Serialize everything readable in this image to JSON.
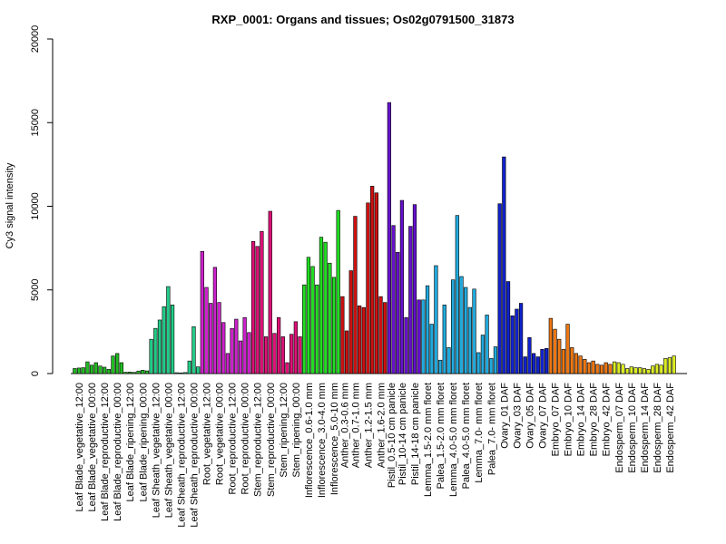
{
  "chart_data": {
    "type": "bar",
    "title": "RXP_0001: Organs and tissues; Os02g0791500_31873",
    "xlabel": "",
    "ylabel": "Cy3 signal intensity",
    "ylim": [
      0,
      20000
    ],
    "yticks": [
      0,
      5000,
      10000,
      15000,
      20000
    ],
    "grid": false,
    "legend": "none",
    "groups": [
      {
        "name": "Leaf Blade_vegetative_12:00",
        "color": "#22bb22",
        "values": [
          300,
          330,
          350
        ]
      },
      {
        "name": "Leaf Blade_vegetative_00:00",
        "color": "#22bb22",
        "values": [
          700,
          500,
          650
        ]
      },
      {
        "name": "Leaf Blade_reproductive_12:00",
        "color": "#22bb22",
        "values": [
          450,
          380,
          250
        ]
      },
      {
        "name": "Leaf Blade_reproductive_00:00",
        "color": "#22bb22",
        "values": [
          1050,
          1200,
          650
        ]
      },
      {
        "name": "Leaf Blade_ripening_12:00",
        "color": "#22bb22",
        "values": [
          80,
          90,
          70
        ]
      },
      {
        "name": "Leaf Blade_ripening_00:00",
        "color": "#22bb22",
        "values": [
          150,
          200,
          160
        ]
      },
      {
        "name": "Leaf Sheath_vegetative_12:00",
        "color": "#22cc88",
        "values": [
          2050,
          2700,
          3200
        ]
      },
      {
        "name": "Leaf Sheath_vegetative_00:00",
        "color": "#22cc88",
        "values": [
          4000,
          5200,
          4100
        ]
      },
      {
        "name": "Leaf Sheath_reproductive_12:00",
        "color": "#22cc88",
        "values": [
          50,
          40,
          60
        ]
      },
      {
        "name": "Leaf Sheath_reproductive_00:00",
        "color": "#22cc88",
        "values": [
          750,
          2800,
          400
        ]
      },
      {
        "name": "Root_vegetative_12:00",
        "color": "#cc22cc",
        "values": [
          7300,
          5150,
          4200
        ]
      },
      {
        "name": "Root_vegetative_00:00",
        "color": "#cc22cc",
        "values": [
          6350,
          4250,
          3050
        ]
      },
      {
        "name": "Root_reproductive_12:00",
        "color": "#cc22cc",
        "values": [
          1200,
          2700,
          3250
        ]
      },
      {
        "name": "Root_reproductive_00:00",
        "color": "#cc22cc",
        "values": [
          1950,
          3350,
          2450
        ]
      },
      {
        "name": "Stem_reproductive_12:00",
        "color": "#dd1177",
        "values": [
          7900,
          7600,
          8500
        ]
      },
      {
        "name": "Stem_reproductive_00:00",
        "color": "#dd1177",
        "values": [
          2200,
          9700,
          2400
        ]
      },
      {
        "name": "Stem_ripening_12:00",
        "color": "#dd1177",
        "values": [
          3350,
          2200,
          650
        ]
      },
      {
        "name": "Stem_ripening_00:00",
        "color": "#dd1177",
        "values": [
          2350,
          3100,
          2200
        ]
      },
      {
        "name": "Inflorescence_0.6-1.0 mm",
        "color": "#22dd22",
        "values": [
          5300,
          6950,
          6400
        ]
      },
      {
        "name": "Inflorescence_3.0-4.0 mm",
        "color": "#22dd22",
        "values": [
          5300,
          8150,
          7850
        ]
      },
      {
        "name": "Inflorescence_5.0-10 mm",
        "color": "#22dd22",
        "values": [
          6600,
          5750,
          9750
        ]
      },
      {
        "name": "Anther_0.3-0.6 mm",
        "color": "#cc1111",
        "values": [
          4600,
          2550
        ]
      },
      {
        "name": "Anther_0.7-1.0 mm",
        "color": "#cc1111",
        "values": [
          6150,
          9400,
          4050
        ]
      },
      {
        "name": "Anther_1.2-1.5 mm",
        "color": "#cc1111",
        "values": [
          3950,
          10200,
          11200
        ]
      },
      {
        "name": "Anther_1.6-2.0 mm",
        "color": "#cc1111",
        "values": [
          10800,
          4600,
          4250
        ]
      },
      {
        "name": "Pistil_0.5-10 cm panicle",
        "color": "#6611cc",
        "values": [
          16200,
          8850
        ]
      },
      {
        "name": "Pistil_10-14 cm panicle",
        "color": "#6611cc",
        "values": [
          7250,
          10350,
          3350
        ]
      },
      {
        "name": "Pistil_14-18 cm panicle",
        "color": "#6611cc",
        "values": [
          8800,
          10100,
          4400
        ]
      },
      {
        "name": "Lemma_1.5-2.0 mm floret",
        "color": "#22aadd",
        "values": [
          4400,
          5250,
          2950
        ]
      },
      {
        "name": "Palea_1.5-2.0 mm floret",
        "color": "#22aadd",
        "values": [
          6450,
          800,
          4100
        ]
      },
      {
        "name": "Lemma_4.0-5.0 mm floret",
        "color": "#22aadd",
        "values": [
          1550,
          5600,
          9450
        ]
      },
      {
        "name": "Palea_4.0-5.0 mm floret",
        "color": "#22aadd",
        "values": [
          5800,
          5150,
          3950
        ]
      },
      {
        "name": "Lemma_7.0- mm floret",
        "color": "#22aadd",
        "values": [
          5050,
          1250,
          2300
        ]
      },
      {
        "name": "Palea_7.0- mm floret",
        "color": "#22aadd",
        "values": [
          3500,
          900,
          1600
        ]
      },
      {
        "name": "Ovary_01 DAF",
        "color": "#1122cc",
        "values": [
          10150,
          12950,
          5500
        ]
      },
      {
        "name": "Ovary_03 DAF",
        "color": "#1122cc",
        "values": [
          3450,
          3850,
          4200
        ]
      },
      {
        "name": "Ovary_05 DAF",
        "color": "#1122cc",
        "values": [
          1000,
          2150,
          1200
        ]
      },
      {
        "name": "Ovary_07 DAF",
        "color": "#1122cc",
        "values": [
          1000,
          1450,
          1500
        ]
      },
      {
        "name": "Embryo_07 DAF",
        "color": "#ee7711",
        "values": [
          3300,
          2650,
          2050
        ]
      },
      {
        "name": "Embryo_10 DAF",
        "color": "#ee7711",
        "values": [
          1450,
          2950,
          1550
        ]
      },
      {
        "name": "Embryo_14 DAF",
        "color": "#ee7711",
        "values": [
          1200,
          1050,
          850
        ]
      },
      {
        "name": "Embryo_28 DAF",
        "color": "#ee7711",
        "values": [
          650,
          750,
          550
        ]
      },
      {
        "name": "Embryo_42 DAF",
        "color": "#ee7711",
        "values": [
          500,
          650,
          550
        ]
      },
      {
        "name": "Endosperm_07 DAF",
        "color": "#ddee22",
        "values": [
          700,
          650,
          550
        ]
      },
      {
        "name": "Endosperm_10 DAF",
        "color": "#ddee22",
        "values": [
          300,
          400,
          350
        ]
      },
      {
        "name": "Endosperm_14 DAF",
        "color": "#ddee22",
        "values": [
          350,
          300,
          250
        ]
      },
      {
        "name": "Endosperm_28 DAF",
        "color": "#ddee22",
        "values": [
          450,
          550,
          500
        ]
      },
      {
        "name": "Endosperm_42 DAF",
        "color": "#ddee22",
        "values": [
          900,
          950,
          1050
        ]
      }
    ],
    "tick_labels": [
      "Leaf Blade_vegetative_12:00",
      "Leaf Blade_vegetative_00:00",
      "Leaf Blade_reproductive_12:00",
      "Leaf Blade_reproductive_00:00",
      "Leaf Blade_ripening_12:00",
      "Leaf Blade_ripening_00:00",
      "Leaf Sheath_vegetative_12:00",
      "Leaf Sheath_vegetative_00:00",
      "Leaf Sheath_reproductive_12:00",
      "Leaf Sheath_reproductive_00:00",
      "Root_vegetative_12:00",
      "Root_vegetative_00:00",
      "Root_reproductive_12:00",
      "Root_reproductive_00:00",
      "Stem_reproductive_12:00",
      "Stem_reproductive_00:00",
      "Stem_ripening_12:00",
      "Stem_ripening_00:00",
      "Inflorescence_0.6-1.0 mm",
      "Inflorescence_3.0-4.0 mm",
      "Inflorescence_5.0-10 mm",
      "Anther_0.3-0.6 mm",
      "Anther_0.7-1.0 mm",
      "Anther_1.2-1.5 mm",
      "Anther_1.6-2.0 mm",
      "Pistil_0.5-10 cm panicle",
      "Pistil_10-14 cm panicle",
      "Pistil_14-18 cm panicle",
      "Lemma_1.5-2.0 mm floret",
      "Palea_1.5-2.0 mm floret",
      "Lemma_4.0-5.0 mm floret",
      "Palea_4.0-5.0 mm floret",
      "Lemma_7.0- mm floret",
      "Palea_7.0- mm floret",
      "Ovary_01 DAF",
      "Ovary_03 DAF",
      "Ovary_05 DAF",
      "Ovary_07 DAF",
      "Embryo_07 DAF",
      "Embryo_10 DAF",
      "Embryo_14 DAF",
      "Embryo_28 DAF",
      "Embryo_42 DAF",
      "Endosperm_07 DAF",
      "Endosperm_10 DAF",
      "Endosperm_14 DAF",
      "Endosperm_28 DAF",
      "Endosperm_42 DAF"
    ]
  }
}
